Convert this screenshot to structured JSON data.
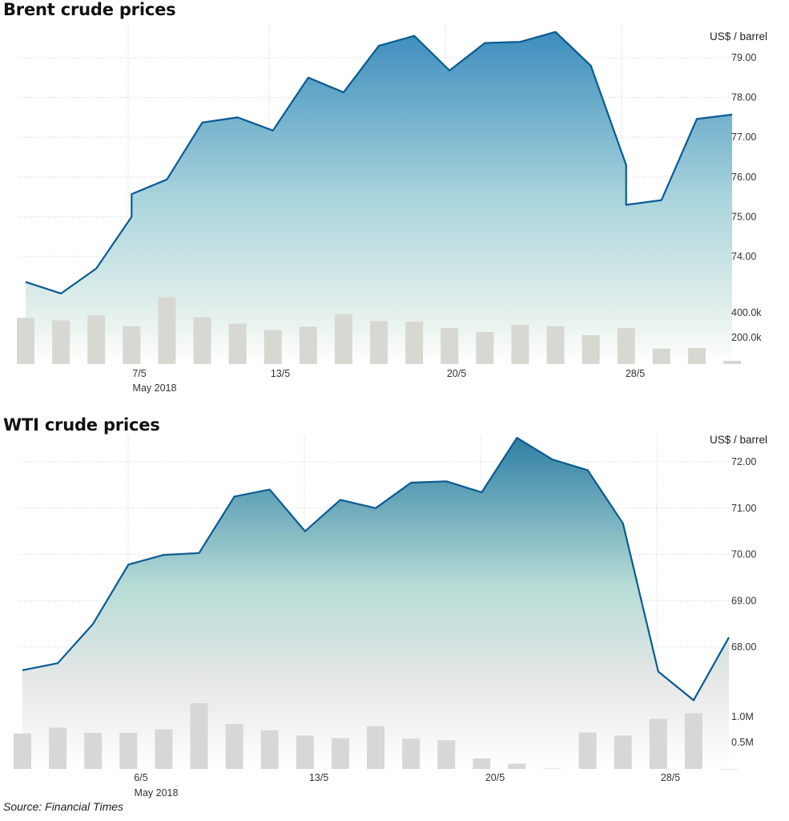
{
  "chart_data": [
    {
      "type": "area",
      "title": "Brent crude prices",
      "ylabel": "US$ / barrel",
      "ylim": [
        73.0,
        79.5
      ],
      "y_ticks": [
        "74.00",
        "75.00",
        "76.00",
        "77.00",
        "78.00",
        "79.00"
      ],
      "x_tick_labels": [
        "7/5",
        "13/5",
        "20/5",
        "28/5"
      ],
      "x_sublabel": "May 2018",
      "series": [
        {
          "name": "price",
          "x": [
            1,
            2,
            3,
            4,
            4,
            5,
            6,
            7,
            8,
            9,
            10,
            11,
            12,
            13,
            14,
            15,
            16,
            17,
            18,
            18,
            19,
            20,
            21
          ],
          "values": [
            73.36,
            73.07,
            73.7,
            75.0,
            75.57,
            75.94,
            77.37,
            77.5,
            77.17,
            78.5,
            78.13,
            79.3,
            79.55,
            78.68,
            79.37,
            79.4,
            79.65,
            78.8,
            76.3,
            75.3,
            75.42,
            77.46,
            77.57
          ]
        }
      ],
      "volume": {
        "ylabels": [
          "400.0k",
          "200.0k"
        ],
        "x": [
          1,
          2,
          3,
          4,
          5,
          6,
          7,
          8,
          9,
          10,
          11,
          12,
          13,
          14,
          15,
          16,
          17,
          18,
          19,
          20,
          21
        ],
        "values": [
          360000,
          340000,
          380000,
          295000,
          520000,
          365000,
          315000,
          265000,
          290000,
          390000,
          335000,
          330000,
          280000,
          250000,
          305000,
          295000,
          225000,
          280000,
          120000,
          125000,
          25000
        ]
      }
    },
    {
      "type": "area",
      "title": "WTI crude prices",
      "ylabel": "US$ / barrel",
      "ylim": [
        67.0,
        72.6
      ],
      "y_ticks": [
        "68.00",
        "69.00",
        "70.00",
        "71.00",
        "72.00"
      ],
      "x_tick_labels": [
        "6/5",
        "13/5",
        "20/5",
        "28/5"
      ],
      "x_sublabel": "May 2018",
      "series": [
        {
          "name": "price",
          "x": [
            1,
            2,
            3,
            4,
            5,
            6,
            7,
            8,
            9,
            10,
            11,
            12,
            13,
            14,
            15,
            16,
            17,
            18,
            19,
            20,
            21
          ],
          "values": [
            67.5,
            67.65,
            68.5,
            69.78,
            69.99,
            70.03,
            71.25,
            71.4,
            70.5,
            71.18,
            71.0,
            71.55,
            71.58,
            71.34,
            72.52,
            72.05,
            71.82,
            70.67,
            67.47,
            66.85,
            68.21
          ]
        }
      ],
      "volume": {
        "ylabels": [
          "1.0M",
          "0.5M"
        ],
        "x": [
          1,
          2,
          3,
          4,
          5,
          6,
          7,
          8,
          9,
          10,
          11,
          12,
          13,
          14,
          15,
          16,
          17,
          18,
          19,
          20,
          21
        ],
        "values": [
          680000,
          790000,
          690000,
          690000,
          760000,
          1260000,
          860000,
          740000,
          640000,
          590000,
          820000,
          580000,
          550000,
          200000,
          100000,
          10000,
          700000,
          640000,
          960000,
          1070000,
          0
        ]
      }
    }
  ],
  "source": "Source: Financial Times"
}
